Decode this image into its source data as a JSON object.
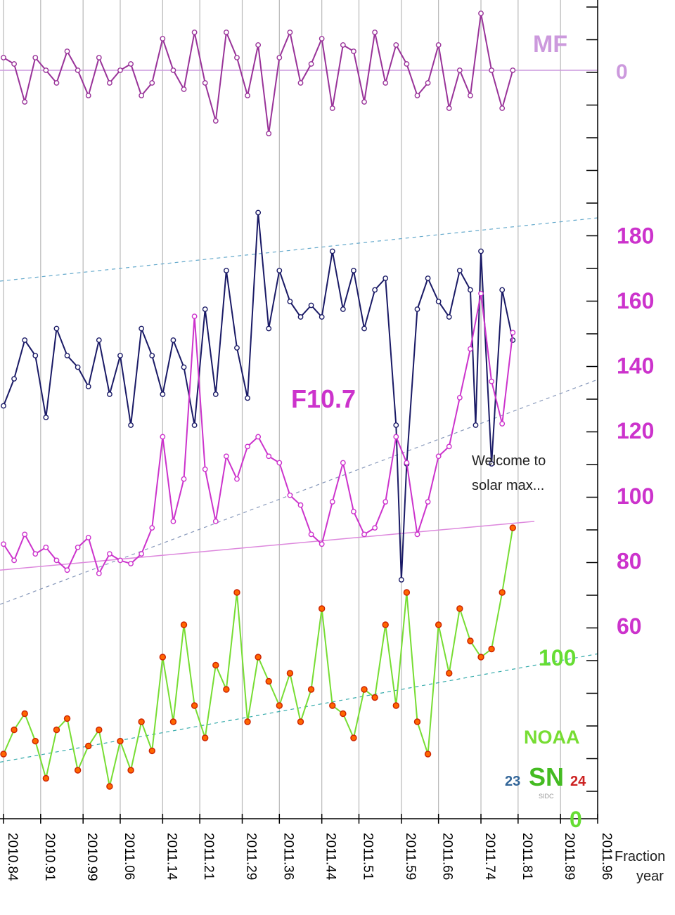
{
  "chart_data": {
    "type": "line",
    "title": "",
    "xlabel": "Fraction year",
    "xlabel_lines": [
      "Fraction",
      "year"
    ],
    "x_ticks": [
      "2010.84",
      "2010.91",
      "2010.99",
      "2011.06",
      "2011.14",
      "2011.21",
      "2011.29",
      "2011.36",
      "2011.44",
      "2011.51",
      "2011.59",
      "2011.66",
      "2011.74",
      "2011.81",
      "2011.89",
      "2011.96"
    ],
    "xlim": [
      2010.84,
      2011.96
    ],
    "f107_axis": {
      "ticks": [
        "60",
        "80",
        "100",
        "120",
        "140",
        "160",
        "180"
      ],
      "range": [
        60,
        180
      ]
    },
    "sn_axis": {
      "ticks": [
        "0",
        "100"
      ],
      "range": [
        0,
        100
      ]
    },
    "mf_axis": {
      "ticks": [
        "0"
      ]
    },
    "labels": {
      "mf": "MF",
      "f107": "F10.7",
      "noaa": "NOAA",
      "sn": "SN",
      "sn_left": "23",
      "sn_right": "24",
      "sidc": "SIDC"
    },
    "annotation": [
      "Welcome to",
      "solar max..."
    ],
    "series": [
      {
        "name": "MF",
        "color": "#993399",
        "x": [
          2010.84,
          2010.86,
          2010.88,
          2010.9,
          2010.92,
          2010.94,
          2010.96,
          2010.98,
          2011.0,
          2011.02,
          2011.04,
          2011.06,
          2011.08,
          2011.1,
          2011.12,
          2011.14,
          2011.16,
          2011.18,
          2011.2,
          2011.22,
          2011.24,
          2011.26,
          2011.28,
          2011.3,
          2011.32,
          2011.34,
          2011.36,
          2011.38,
          2011.4,
          2011.42,
          2011.44,
          2011.46,
          2011.48,
          2011.5,
          2011.52,
          2011.54,
          2011.56,
          2011.58,
          2011.6,
          2011.62,
          2011.64,
          2011.66,
          2011.68,
          2011.7,
          2011.72,
          2011.74,
          2011.76,
          2011.78,
          2011.8
        ],
        "y": [
          1.0,
          0.5,
          -2.5,
          1.0,
          0.0,
          -1.0,
          1.5,
          0.0,
          -2.0,
          1.0,
          -1.0,
          0.0,
          0.5,
          -2.0,
          -1.0,
          2.5,
          0.0,
          -1.5,
          3.0,
          -1.0,
          -4.0,
          3.0,
          1.0,
          -2.0,
          2.0,
          -5.0,
          1.0,
          3.0,
          -1.0,
          0.5,
          2.5,
          -3.0,
          2.0,
          1.5,
          -2.5,
          3.0,
          -1.0,
          2.0,
          0.5,
          -2.0,
          -1.0,
          2.0,
          -3.0,
          0.0,
          -2.0,
          4.5,
          0.0,
          -3.0,
          0.0
        ]
      },
      {
        "name": "Blue index",
        "color": "#1a1a66",
        "x": [
          2010.84,
          2010.86,
          2010.88,
          2010.9,
          2010.92,
          2010.94,
          2010.96,
          2010.98,
          2011.0,
          2011.02,
          2011.04,
          2011.06,
          2011.08,
          2011.1,
          2011.12,
          2011.14,
          2011.16,
          2011.18,
          2011.2,
          2011.22,
          2011.24,
          2011.26,
          2011.28,
          2011.3,
          2011.32,
          2011.34,
          2011.36,
          2011.38,
          2011.4,
          2011.42,
          2011.44,
          2011.46,
          2011.48,
          2011.5,
          2011.52,
          2011.54,
          2011.56,
          2011.58,
          2011.59,
          2011.6,
          2011.62,
          2011.64,
          2011.66,
          2011.68,
          2011.7,
          2011.72,
          2011.73,
          2011.74,
          2011.76,
          2011.78,
          2011.8
        ],
        "y": [
          155,
          162,
          172,
          168,
          152,
          175,
          168,
          165,
          160,
          172,
          158,
          168,
          150,
          175,
          168,
          158,
          172,
          165,
          150,
          180,
          158,
          190,
          170,
          157,
          205,
          175,
          190,
          182,
          178,
          181,
          178,
          195,
          180,
          190,
          175,
          185,
          188,
          150,
          110,
          140,
          180,
          188,
          182,
          178,
          190,
          185,
          150,
          195,
          140,
          185,
          172
        ]
      },
      {
        "name": "F10.7",
        "color": "#cc33cc",
        "x": [
          2010.84,
          2010.86,
          2010.88,
          2010.9,
          2010.92,
          2010.94,
          2010.96,
          2010.98,
          2011.0,
          2011.02,
          2011.04,
          2011.06,
          2011.08,
          2011.1,
          2011.12,
          2011.14,
          2011.16,
          2011.18,
          2011.2,
          2011.22,
          2011.24,
          2011.26,
          2011.28,
          2011.3,
          2011.32,
          2011.34,
          2011.36,
          2011.38,
          2011.4,
          2011.42,
          2011.44,
          2011.46,
          2011.48,
          2011.5,
          2011.52,
          2011.54,
          2011.56,
          2011.58,
          2011.6,
          2011.62,
          2011.64,
          2011.66,
          2011.68,
          2011.7,
          2011.72,
          2011.74,
          2011.76,
          2011.78,
          2011.8
        ],
        "y": [
          85,
          80,
          88,
          82,
          84,
          80,
          77,
          84,
          87,
          76,
          82,
          80,
          79,
          82,
          90,
          118,
          92,
          105,
          155,
          108,
          92,
          112,
          105,
          115,
          118,
          112,
          110,
          100,
          97,
          88,
          85,
          98,
          110,
          95,
          88,
          90,
          98,
          118,
          110,
          88,
          98,
          112,
          115,
          130,
          145,
          162,
          135,
          122,
          150
        ]
      },
      {
        "name": "SN",
        "color": "#77dd33",
        "marker_color": "#ff6600",
        "x": [
          2010.84,
          2010.86,
          2010.88,
          2010.9,
          2010.92,
          2010.94,
          2010.96,
          2010.98,
          2011.0,
          2011.02,
          2011.04,
          2011.06,
          2011.08,
          2011.1,
          2011.12,
          2011.14,
          2011.16,
          2011.18,
          2011.2,
          2011.22,
          2011.24,
          2011.26,
          2011.28,
          2011.3,
          2011.32,
          2011.34,
          2011.36,
          2011.38,
          2011.4,
          2011.42,
          2011.44,
          2011.46,
          2011.48,
          2011.5,
          2011.52,
          2011.54,
          2011.56,
          2011.58,
          2011.6,
          2011.62,
          2011.64,
          2011.66,
          2011.68,
          2011.7,
          2011.72,
          2011.74,
          2011.76,
          2011.78,
          2011.8
        ],
        "y": [
          40,
          55,
          65,
          48,
          25,
          55,
          62,
          30,
          45,
          55,
          20,
          48,
          30,
          60,
          42,
          100,
          60,
          120,
          70,
          50,
          95,
          80,
          140,
          60,
          100,
          85,
          70,
          90,
          60,
          80,
          130,
          70,
          65,
          50,
          80,
          75,
          120,
          70,
          140,
          60,
          40,
          120,
          90,
          130,
          110,
          100,
          105,
          140,
          180
        ]
      }
    ]
  }
}
